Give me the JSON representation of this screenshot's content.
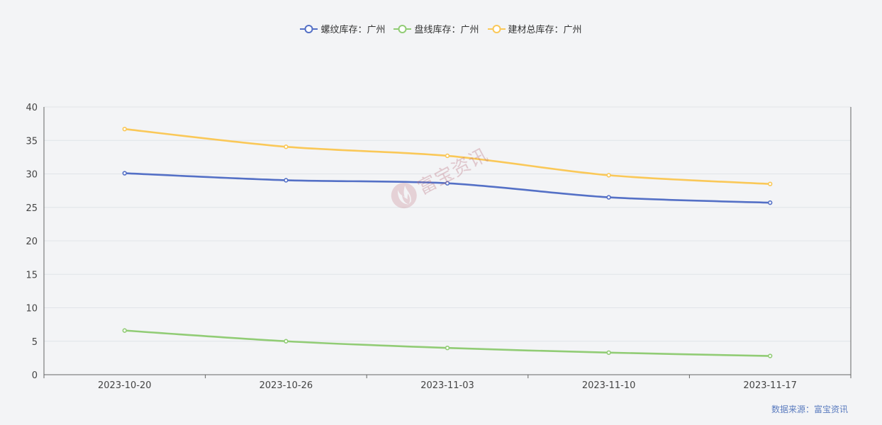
{
  "chart_data": {
    "type": "line",
    "categories": [
      "2023-10-20",
      "2023-10-26",
      "2023-11-03",
      "2023-11-10",
      "2023-11-17"
    ],
    "series": [
      {
        "name": "螺纹库存：广州",
        "color": "#5470c6",
        "values": [
          30.1,
          29.05,
          28.6,
          26.5,
          25.7
        ]
      },
      {
        "name": "盘线库存：广州",
        "color": "#91cc75",
        "values": [
          6.6,
          5.0,
          4.0,
          3.3,
          2.8
        ]
      },
      {
        "name": "建材总库存：广州",
        "color": "#fac858",
        "values": [
          36.7,
          34.05,
          32.7,
          29.8,
          28.5
        ]
      }
    ],
    "ylim": [
      0,
      40
    ],
    "yticks": [
      0,
      5,
      10,
      15,
      20,
      25,
      30,
      35,
      40
    ],
    "grid": true,
    "legend_position": "top-center",
    "smooth": true
  },
  "source_label": "数据来源：富宝资讯",
  "watermark": {
    "text": "富宝资讯",
    "icon": "flame-logo-icon"
  }
}
